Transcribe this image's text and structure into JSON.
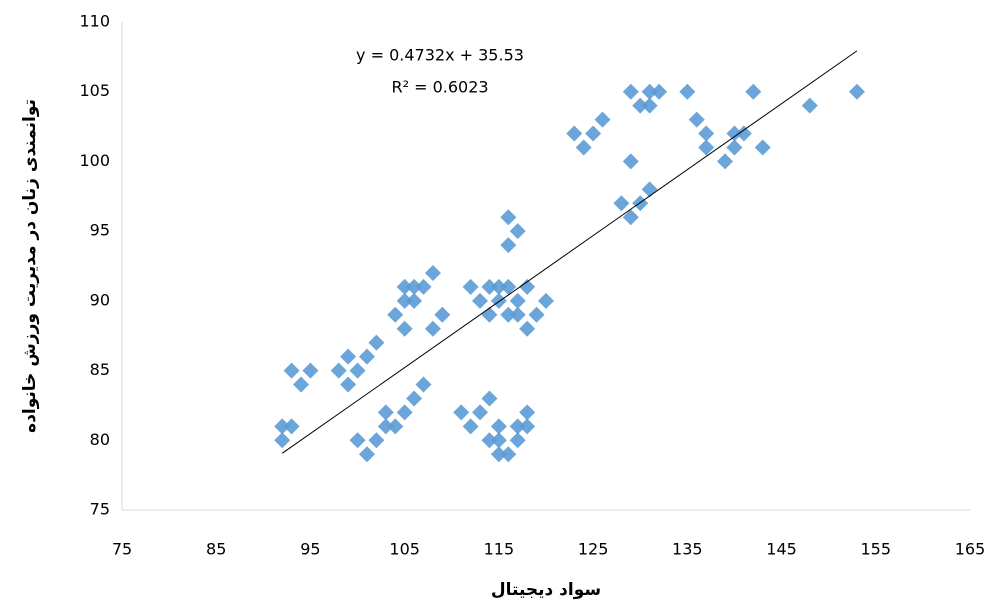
{
  "chart_data": {
    "type": "scatter",
    "x_label": "سواد دیجیتال",
    "y_label": "توانمندی زنان در مدیریت ورزش خانواده",
    "x": [
      92,
      92,
      93,
      93,
      94,
      95,
      98,
      99,
      99,
      100,
      100,
      101,
      101,
      102,
      102,
      103,
      103,
      104,
      104,
      105,
      105,
      105,
      105,
      106,
      106,
      106,
      107,
      107,
      108,
      108,
      109,
      111,
      112,
      112,
      113,
      113,
      114,
      114,
      114,
      114,
      115,
      115,
      115,
      115,
      115,
      116,
      116,
      116,
      116,
      116,
      117,
      117,
      117,
      117,
      117,
      118,
      118,
      118,
      118,
      119,
      120,
      123,
      124,
      125,
      126,
      128,
      129,
      129,
      129,
      130,
      130,
      131,
      131,
      131,
      132,
      135,
      136,
      137,
      137,
      139,
      140,
      140,
      141,
      142,
      143,
      148,
      153
    ],
    "values": [
      81,
      80,
      81,
      85,
      84,
      85,
      85,
      86,
      84,
      85,
      80,
      86,
      79,
      87,
      80,
      82,
      81,
      89,
      81,
      88,
      91,
      82,
      90,
      91,
      90,
      83,
      91,
      84,
      88,
      92,
      89,
      82,
      91,
      81,
      82,
      90,
      83,
      80,
      91,
      89,
      81,
      80,
      90,
      91,
      79,
      79,
      91,
      89,
      94,
      96,
      95,
      80,
      81,
      90,
      89,
      91,
      88,
      82,
      81,
      89,
      90,
      102,
      101,
      102,
      103,
      97,
      96,
      100,
      105,
      97,
      104,
      98,
      105,
      104,
      105,
      105,
      103,
      102,
      101,
      100,
      101,
      102,
      102,
      105,
      101,
      104,
      105
    ],
    "color": "#5b9bd5",
    "xlim": [
      75,
      165
    ],
    "xticks": [
      75,
      85,
      95,
      105,
      115,
      125,
      135,
      145,
      155,
      165
    ],
    "ylim": [
      75,
      110
    ],
    "yticks": [
      75,
      80,
      85,
      90,
      95,
      100,
      105,
      110
    ],
    "grid": false,
    "trendline": {
      "slope": 0.4732,
      "intercept": 35.53,
      "equation": "y = 0.4732x + 35.53",
      "r2_label": "R² = 0.6023"
    }
  }
}
